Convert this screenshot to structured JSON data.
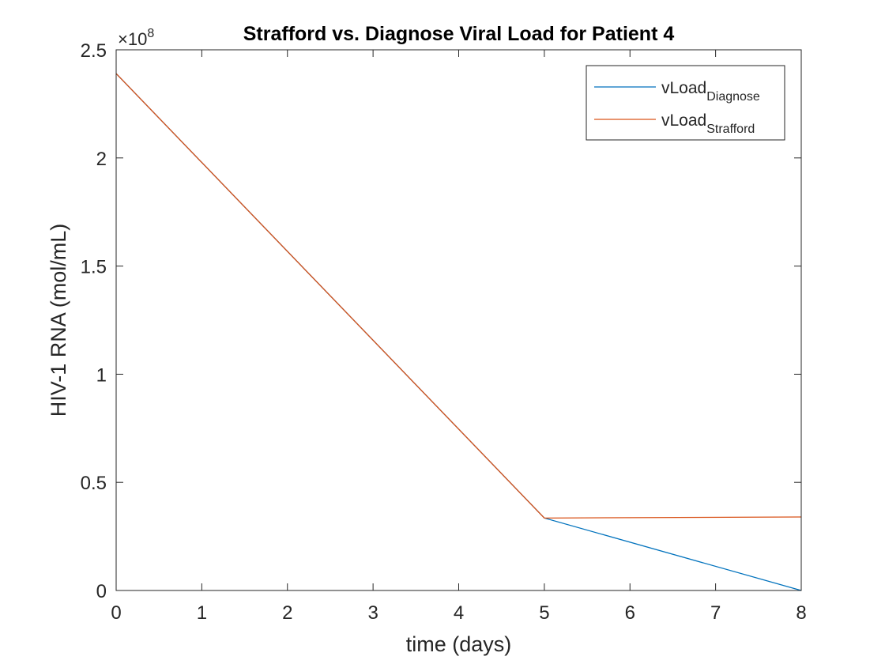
{
  "chart_data": {
    "type": "line",
    "title": "Strafford vs. Diagnose Viral Load for Patient 4",
    "xlabel": "time (days)",
    "ylabel": "HIV-1 RNA (mol/mL)",
    "xlim": [
      0,
      8
    ],
    "ylim": [
      0,
      2.5
    ],
    "y_exponent_label": "×10",
    "y_exponent_power": "8",
    "x_ticks": [
      0,
      1,
      2,
      3,
      4,
      5,
      6,
      7,
      8
    ],
    "x_tick_labels": [
      "0",
      "1",
      "2",
      "3",
      "4",
      "5",
      "6",
      "7",
      "8"
    ],
    "y_ticks": [
      0,
      0.5,
      1,
      1.5,
      2,
      2.5
    ],
    "y_tick_labels": [
      "0",
      "0.5",
      "1",
      "1.5",
      "2",
      "2.5"
    ],
    "grid": false,
    "legend_position": "top-right",
    "series": [
      {
        "name_base": "vLoad",
        "name_sub": "Diagnose",
        "color": "#0072BD",
        "x": [
          0,
          5,
          8
        ],
        "y": [
          2.39,
          0.335,
          0.0
        ]
      },
      {
        "name_base": "vLoad",
        "name_sub": "Strafford",
        "color": "#D95319",
        "x": [
          0,
          5,
          8
        ],
        "y": [
          2.39,
          0.335,
          0.34
        ]
      }
    ]
  }
}
